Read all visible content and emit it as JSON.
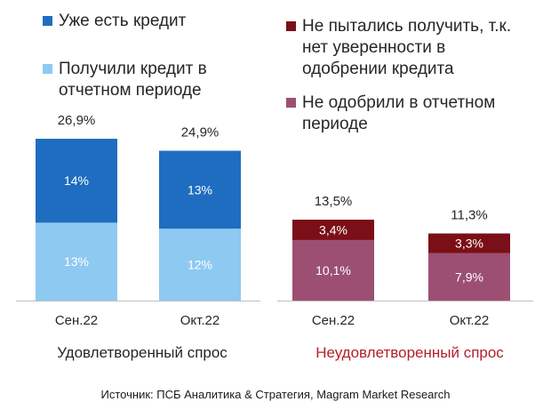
{
  "legend": {
    "left": [
      {
        "label": "Уже есть кредит",
        "color": "#1f6dc0"
      },
      {
        "label": "Получили кредит в\nотчетном периоде",
        "color": "#8ec9f2"
      }
    ],
    "right": [
      {
        "label": "Не пытались получить, т.к.\nнет уверенности в\nодобрении кредита",
        "color": "#7b0f17"
      },
      {
        "label": "Не одобрили в отчетном\nпериоде",
        "color": "#9c4f73"
      }
    ]
  },
  "chart_data": [
    {
      "type": "bar",
      "stacked": true,
      "title": "Удовлетворенный спрос",
      "title_color": "#262626",
      "categories": [
        "Сен.22",
        "Окт.22"
      ],
      "series": [
        {
          "name": "Получили кредит в отчетном периоде",
          "values": [
            13,
            12
          ],
          "labels": [
            "13%",
            "12%"
          ],
          "color": "#8ec9f2"
        },
        {
          "name": "Уже есть кредит",
          "values": [
            14,
            13
          ],
          "labels": [
            "14%",
            "13%"
          ],
          "color": "#1f6dc0"
        }
      ],
      "totals": [
        26.9,
        24.9
      ],
      "total_labels": [
        "26,9%",
        "24,9%"
      ]
    },
    {
      "type": "bar",
      "stacked": true,
      "title": "Неудовлетворенный спрос",
      "title_color": "#b21f2a",
      "categories": [
        "Сен.22",
        "Окт.22"
      ],
      "series": [
        {
          "name": "Не одобрили в отчетном периоде",
          "values": [
            10.1,
            7.9
          ],
          "labels": [
            "10,1%",
            "7,9%"
          ],
          "color": "#9c4f73"
        },
        {
          "name": "Не пытались получить, т.к. нет уверенности в одобрении кредита",
          "values": [
            3.4,
            3.3
          ],
          "labels": [
            "3,4%",
            "3,3%"
          ],
          "color": "#7b0f17"
        }
      ],
      "totals": [
        13.5,
        11.3
      ],
      "total_labels": [
        "13,5%",
        "11,3%"
      ]
    }
  ],
  "source": "Источник: ПСБ Аналитика & Стратегия, Magram Market Research"
}
